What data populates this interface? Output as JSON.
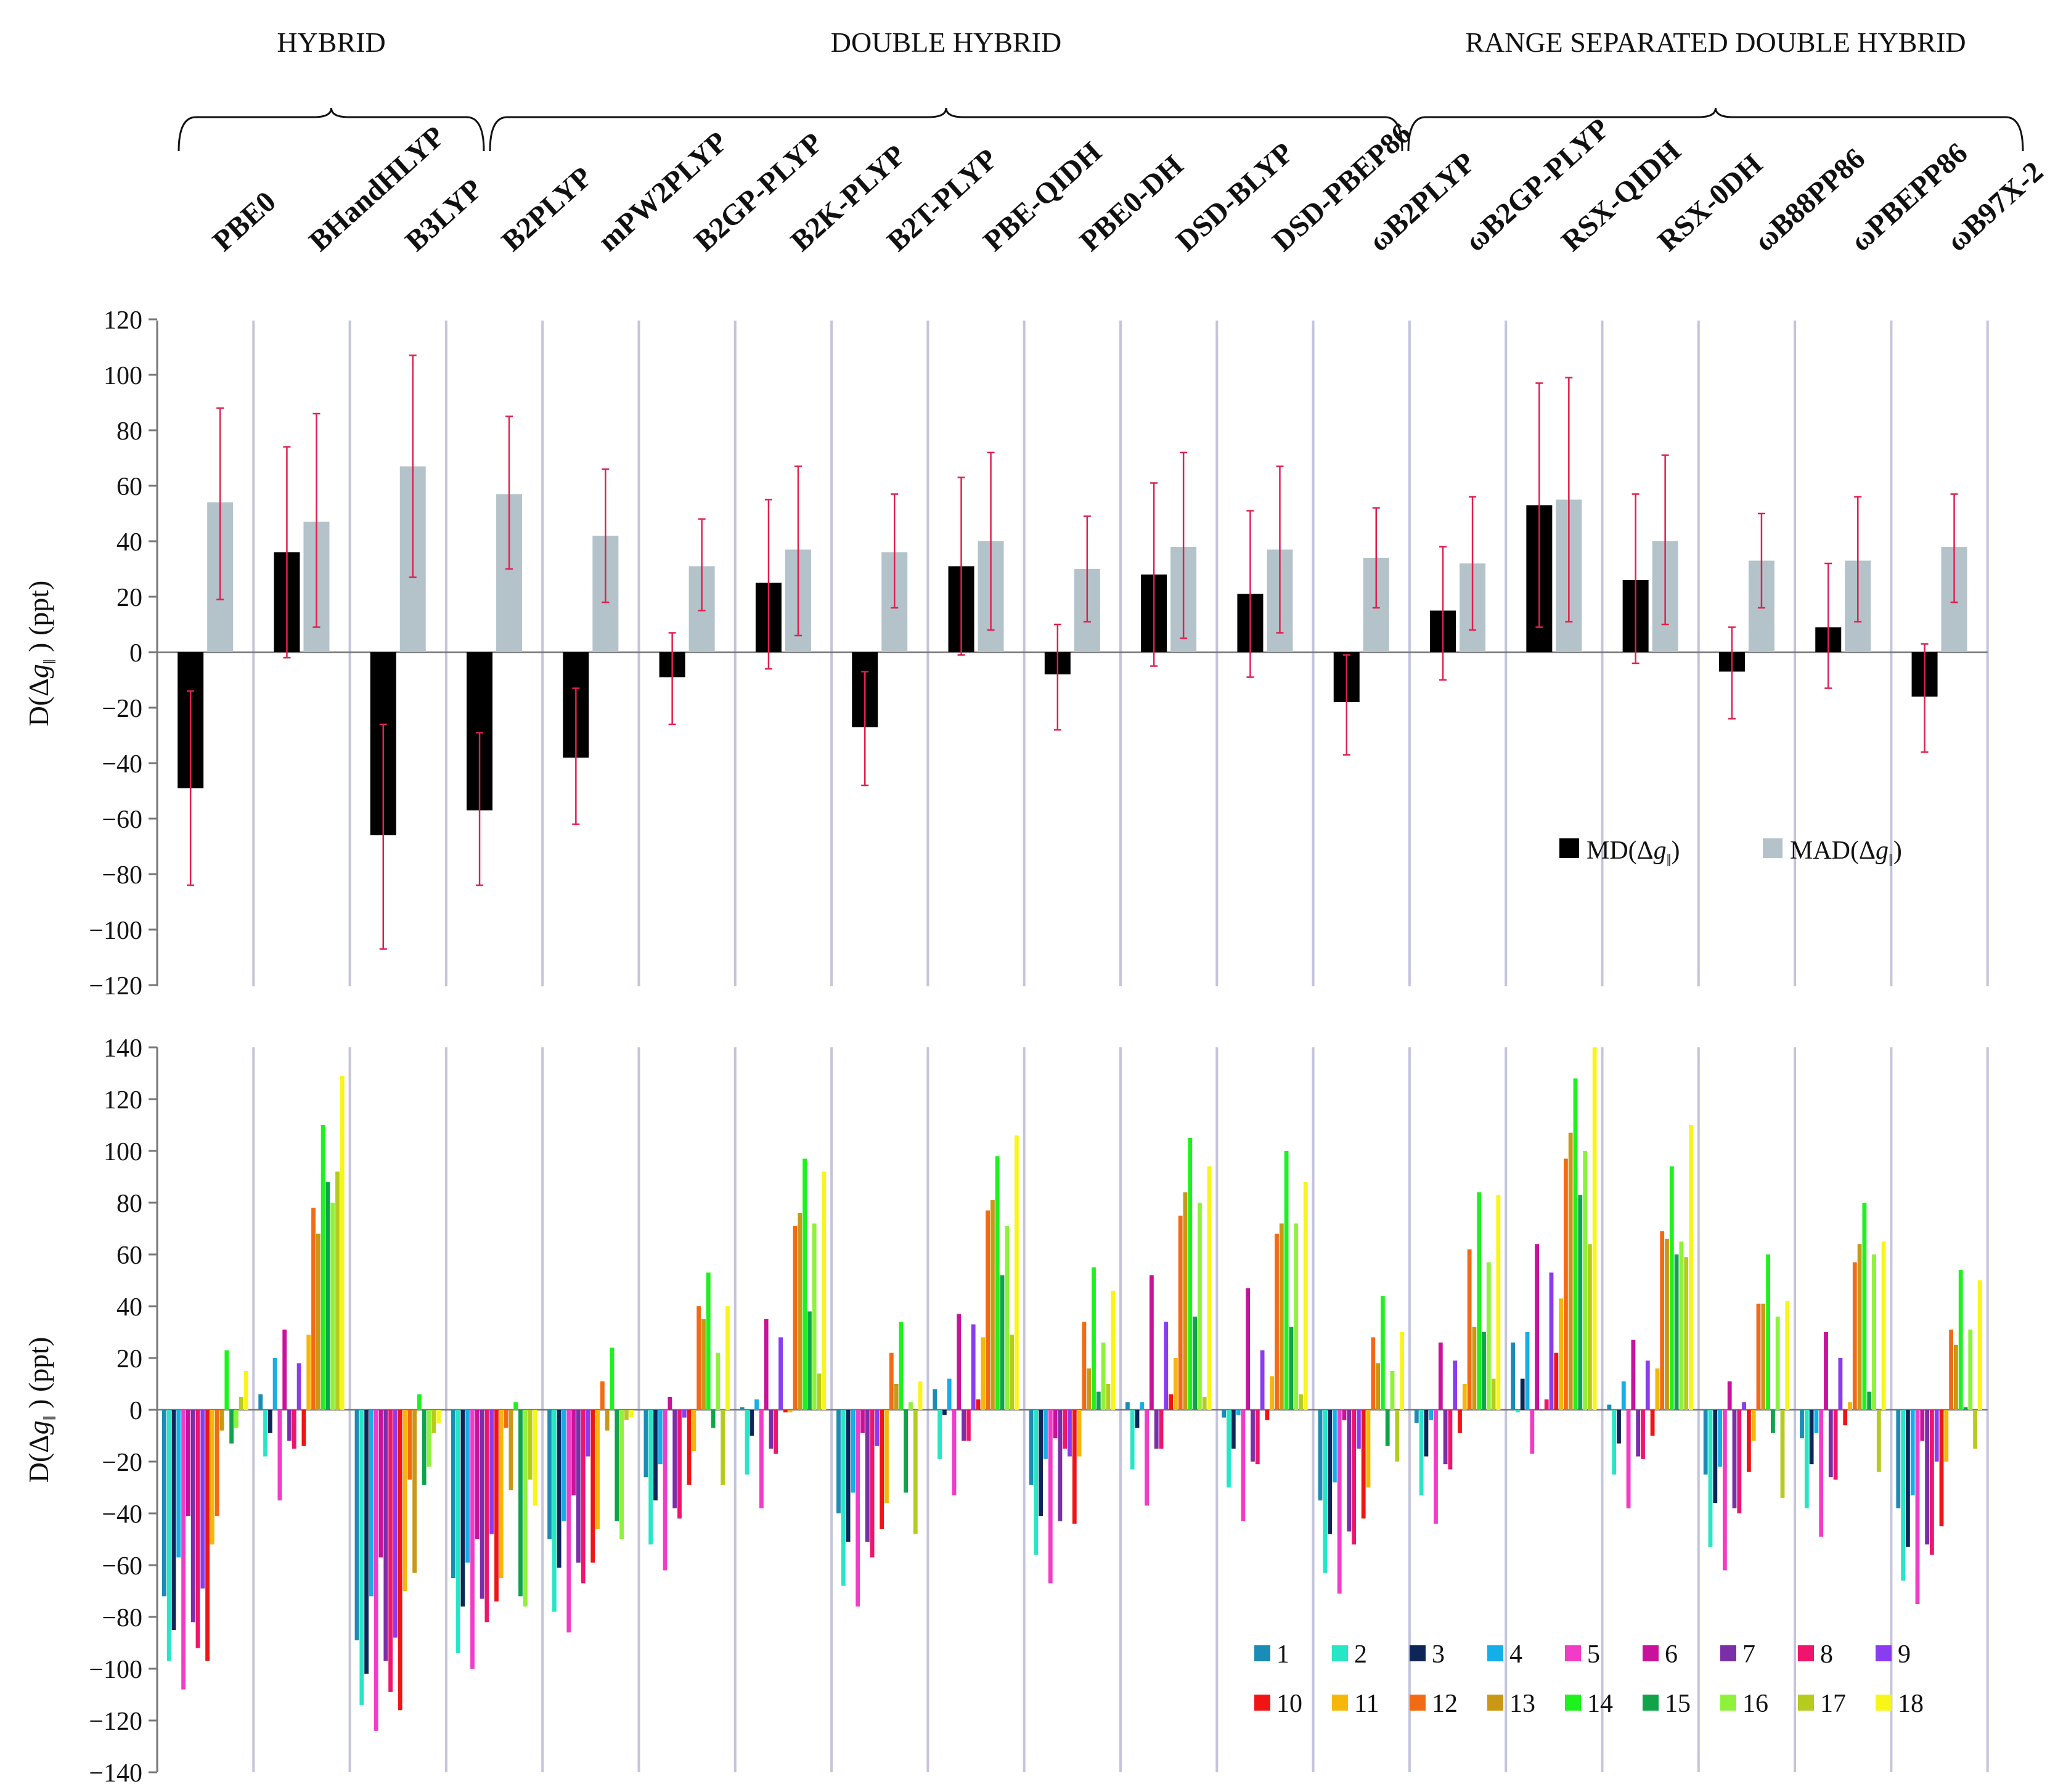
{
  "groups": [
    {
      "label": "HYBRID",
      "from": 0,
      "to": 2
    },
    {
      "label": "DOUBLE HYBRID",
      "from": 3,
      "to": 12
    },
    {
      "label": "RANGE SEPARATED DOUBLE HYBRID",
      "from": 13,
      "to": 18
    }
  ],
  "functionals": [
    "PBE0",
    "BHandHLYP",
    "B3LYP",
    "B2PLYP",
    "mPW2PLYP",
    "B2GP-PLYP",
    "B2K-PLYP",
    "B2T-PLYP",
    "PBE-QIDH",
    "PBE0-DH",
    "DSD-BLYP",
    "DSD-PBEP86",
    "ωB2PLYP",
    "ωB2GP-PLYP",
    "RSX-QIDH",
    "RSX-0DH",
    "ωB88PP86",
    "ωPBEPP86",
    "ωB97X-2"
  ],
  "colors": {
    "md": "#000000",
    "mad": "#b4c3c9",
    "error_bar": "#e0204f",
    "separator": "#c4c4dc",
    "axis": "#777777",
    "systems": [
      "#1a8cb5",
      "#27e6c6",
      "#0e2557",
      "#14aee8",
      "#f23cc8",
      "#c8129b",
      "#7a2fa8",
      "#f0146c",
      "#8a3cf0",
      "#f01414",
      "#f5b80a",
      "#f26b14",
      "#c99814",
      "#1ef21e",
      "#0fa34a",
      "#8ef23a",
      "#b5cc1e",
      "#f8f51a"
    ]
  },
  "chart_data": [
    {
      "type": "bar",
      "panel": "top",
      "ylabel_main": "D(Δ",
      "ylabel_g": "g",
      "ylabel_sub": "‖",
      "ylabel_tail": " ) (ppt)",
      "ylim": [
        -120,
        120
      ],
      "yticks": [
        "120",
        "100",
        "80",
        "60",
        "40",
        "20",
        "0",
        "−20",
        "−40",
        "−60",
        "−80",
        "−100",
        "−120"
      ],
      "legend_position": "lower-right",
      "series": [
        {
          "name": "MD",
          "label_main": "MD(Δ",
          "values": [
            -49,
            36,
            -66,
            -57,
            -38,
            -9,
            25,
            -27,
            31,
            -8,
            28,
            21,
            -18,
            15,
            53,
            26,
            -7,
            9,
            -16
          ],
          "err_low": [
            -84,
            -2,
            -107,
            -84,
            -62,
            -26,
            -6,
            -48,
            -1,
            -28,
            -5,
            -9,
            -37,
            -10,
            9,
            -4,
            -24,
            -13,
            -36
          ],
          "err_high": [
            -14,
            74,
            -26,
            -29,
            -13,
            7,
            55,
            -7,
            63,
            10,
            61,
            51,
            -1,
            38,
            97,
            57,
            9,
            32,
            3
          ]
        },
        {
          "name": "MAD",
          "label_main": "MAD(Δ",
          "values": [
            54,
            47,
            67,
            57,
            42,
            31,
            37,
            36,
            40,
            30,
            38,
            37,
            34,
            32,
            55,
            40,
            33,
            33,
            38
          ],
          "err_low": [
            19,
            9,
            27,
            30,
            18,
            15,
            6,
            16,
            8,
            11,
            5,
            7,
            16,
            8,
            11,
            10,
            16,
            11,
            18
          ],
          "err_high": [
            88,
            86,
            107,
            85,
            66,
            48,
            67,
            57,
            72,
            49,
            72,
            67,
            52,
            56,
            99,
            71,
            50,
            56,
            57
          ]
        }
      ]
    },
    {
      "type": "bar",
      "panel": "bottom",
      "ylabel_main": "D(Δ",
      "ylabel_g": "g",
      "ylabel_sub": "‖",
      "ylabel_tail": " ) (ppt)",
      "ylim": [
        -140,
        140
      ],
      "yticks": [
        "140",
        "120",
        "100",
        "80",
        "60",
        "40",
        "20",
        "0",
        "−20",
        "−40",
        "−60",
        "−80",
        "−100",
        "−120",
        "−140"
      ],
      "legend_position": "lower-right",
      "systems": [
        "1",
        "2",
        "3",
        "4",
        "5",
        "6",
        "7",
        "8",
        "9",
        "10",
        "11",
        "12",
        "13",
        "14",
        "15",
        "16",
        "17",
        "18"
      ],
      "values": [
        [
          -72,
          -97,
          -85,
          -57,
          -108,
          -41,
          -82,
          -92,
          -69,
          -97,
          -52,
          -41,
          -8,
          23,
          -13,
          -7,
          5,
          15
        ],
        [
          6,
          -18,
          -9,
          20,
          -35,
          31,
          -12,
          -15,
          18,
          -14,
          29,
          78,
          68,
          110,
          88,
          80,
          92,
          129
        ],
        [
          -89,
          -114,
          -102,
          -72,
          -124,
          -57,
          -97,
          -109,
          -88,
          -116,
          -70,
          -27,
          -63,
          6,
          -29,
          -22,
          -9,
          -5
        ],
        [
          -65,
          -94,
          -76,
          -59,
          -100,
          -50,
          -73,
          -82,
          -48,
          -74,
          -65,
          -7,
          -31,
          3,
          -72,
          -76,
          -27,
          -37
        ],
        [
          -50,
          -78,
          -61,
          -43,
          -86,
          -33,
          -59,
          -67,
          -18,
          -59,
          -46,
          11,
          -8,
          24,
          -43,
          -50,
          -4,
          -3
        ],
        [
          -26,
          -52,
          -35,
          -21,
          -62,
          5,
          -38,
          -42,
          -3,
          -29,
          -16,
          40,
          35,
          53,
          -7,
          22,
          -29,
          40
        ],
        [
          1,
          -25,
          -10,
          4,
          -38,
          35,
          -15,
          -17,
          28,
          -1,
          -1,
          71,
          76,
          97,
          38,
          72,
          14,
          92
        ],
        [
          -40,
          -68,
          -51,
          -32,
          -76,
          -9,
          -51,
          -57,
          -14,
          -46,
          -36,
          22,
          10,
          34,
          -32,
          3,
          -48,
          11
        ],
        [
          8,
          -19,
          -2,
          12,
          -33,
          37,
          -12,
          -12,
          33,
          4,
          28,
          77,
          81,
          98,
          52,
          71,
          29,
          106
        ],
        [
          -29,
          -56,
          -41,
          -19,
          -67,
          -11,
          -43,
          -15,
          -18,
          -44,
          -18,
          34,
          16,
          55,
          7,
          26,
          10,
          46
        ],
        [
          3,
          -23,
          -7,
          3,
          -37,
          52,
          -15,
          -15,
          34,
          6,
          20,
          75,
          84,
          105,
          36,
          80,
          5,
          94
        ],
        [
          -3,
          -30,
          -15,
          -2,
          -43,
          47,
          -20,
          -21,
          23,
          -4,
          13,
          68,
          72,
          100,
          32,
          72,
          6,
          88
        ],
        [
          -35,
          -63,
          -48,
          -28,
          -71,
          -4,
          -47,
          -52,
          -15,
          -42,
          -30,
          28,
          18,
          44,
          -14,
          15,
          -20,
          30
        ],
        [
          -5,
          -33,
          -18,
          -4,
          -44,
          26,
          -21,
          -23,
          19,
          -9,
          10,
          62,
          32,
          84,
          30,
          57,
          12,
          83
        ],
        [
          26,
          -1,
          12,
          30,
          -17,
          64,
          0,
          4,
          53,
          22,
          43,
          97,
          107,
          128,
          83,
          100,
          64,
          140
        ],
        [
          2,
          -25,
          -13,
          11,
          -38,
          27,
          -18,
          -19,
          19,
          -10,
          16,
          69,
          66,
          94,
          60,
          65,
          59,
          110
        ],
        [
          -25,
          -53,
          -36,
          -22,
          -62,
          11,
          -38,
          -40,
          3,
          -24,
          -12,
          41,
          41,
          60,
          -9,
          36,
          -34,
          42
        ],
        [
          -11,
          -38,
          -21,
          -9,
          -49,
          30,
          -26,
          -27,
          20,
          -6,
          3,
          57,
          64,
          80,
          7,
          60,
          -24,
          65
        ],
        [
          -38,
          -66,
          -53,
          -33,
          -75,
          -12,
          -52,
          -56,
          -20,
          -45,
          -20,
          31,
          25,
          54,
          1,
          31,
          -15,
          50
        ]
      ]
    }
  ]
}
